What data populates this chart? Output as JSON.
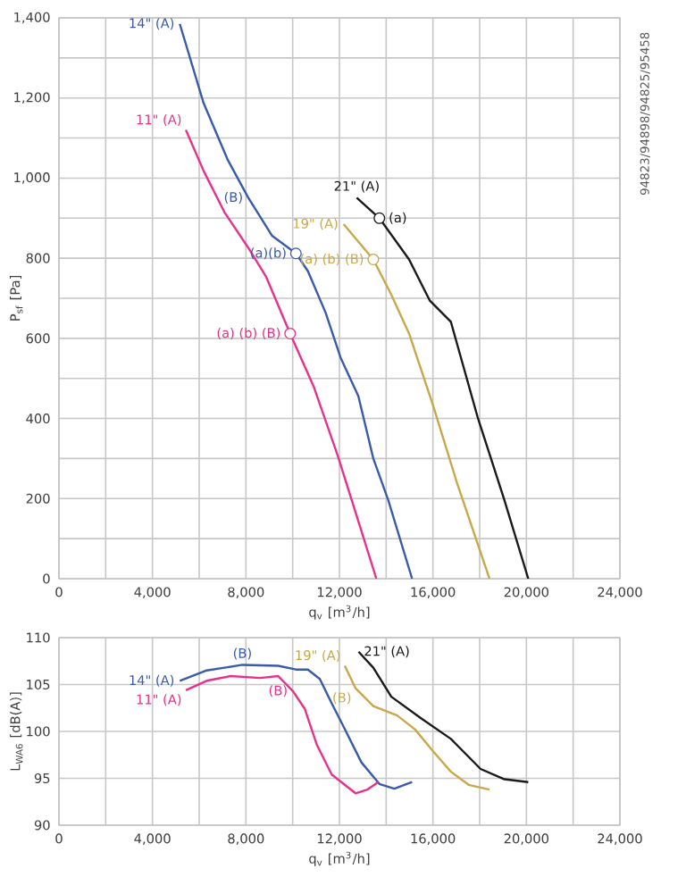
{
  "chart_data": [
    {
      "type": "line",
      "xlabel": "q$_{v}$ [m$^{3}$/h]",
      "ylabel": "P$_{sf}$ [Pa]",
      "grid": true,
      "marker": "none",
      "xlim": [
        0,
        24000
      ],
      "ylim": [
        0,
        1400
      ],
      "xticks": [
        {
          "value": 0,
          "label": "0"
        },
        {
          "value": 2000,
          "label": null
        },
        {
          "value": 4000,
          "label": "4,000"
        },
        {
          "value": 6000,
          "label": null
        },
        {
          "value": 8000,
          "label": "8,000"
        },
        {
          "value": 10000,
          "label": null
        },
        {
          "value": 12000,
          "label": "12,000"
        },
        {
          "value": 14000,
          "label": null
        },
        {
          "value": 16000,
          "label": "16,000"
        },
        {
          "value": 18000,
          "label": null
        },
        {
          "value": 20000,
          "label": "20,000"
        },
        {
          "value": 22000,
          "label": null
        },
        {
          "value": 24000,
          "label": "24,000"
        }
      ],
      "yticks": [
        {
          "value": 0,
          "label": "0"
        },
        {
          "value": 100,
          "label": null
        },
        {
          "value": 200,
          "label": "200"
        },
        {
          "value": 300,
          "label": null
        },
        {
          "value": 400,
          "label": "400"
        },
        {
          "value": 500,
          "label": null
        },
        {
          "value": 600,
          "label": "600"
        },
        {
          "value": 700,
          "label": null
        },
        {
          "value": 800,
          "label": "800"
        },
        {
          "value": 900,
          "label": null
        },
        {
          "value": 1000,
          "label": "1,000"
        },
        {
          "value": 1100,
          "label": null
        },
        {
          "value": 1200,
          "label": "1,200"
        },
        {
          "value": 1300,
          "label": null
        },
        {
          "value": 1400,
          "label": "1,400"
        }
      ],
      "series": [
        {
          "color": "#3a5ba8",
          "x": [
            5170,
            6190,
            7210,
            8100,
            9120,
            10140,
            10650,
            11410,
            12050,
            12810,
            13450,
            14090,
            15110
          ],
          "values": [
            1385,
            1187,
            1047,
            951,
            856,
            812,
            768,
            664,
            552,
            456,
            300,
            196,
            0
          ]
        },
        {
          "color": "#e8318a",
          "x": [
            5430,
            6190,
            7080,
            8100,
            8870,
            9890,
            10910,
            11930,
            12690,
            13580
          ],
          "values": [
            1120,
            1018,
            915,
            826,
            753,
            612,
            478,
            307,
            166,
            0
          ]
        },
        {
          "color": "#c8a84a",
          "x": [
            12180,
            13450,
            14220,
            14980,
            16000,
            17020,
            18420
          ],
          "values": [
            885,
            797,
            709,
            612,
            434,
            241,
            0
          ]
        },
        {
          "color": "#1a1a1a",
          "x": [
            12740,
            13710,
            14980,
            15870,
            16770,
            17910,
            19060,
            20080
          ],
          "values": [
            951,
            900,
            797,
            694,
            641,
            404,
            196,
            0
          ]
        }
      ],
      "annotations": [
        {
          "text": "14\" (A)",
          "x": 5170,
          "y": 1385
        },
        {
          "text": "11\" (A)",
          "x": 5430,
          "y": 1120
        },
        {
          "text": "(B)",
          "x": 8100,
          "y": 951
        },
        {
          "text": "(a)(b)",
          "x": 10140,
          "y": 812
        },
        {
          "text": "(a) (b) (B)",
          "x": 9890,
          "y": 612
        },
        {
          "text": "19\" (A)",
          "x": 12180,
          "y": 885
        },
        {
          "text": "(a) (b) (B)",
          "x": 13450,
          "y": 797
        },
        {
          "text": "21\" (A)",
          "x": 12740,
          "y": 951
        },
        {
          "text": "(a)",
          "x": 13710,
          "y": 900
        },
        "94823/94898/94825/95458"
      ]
    },
    {
      "type": "line",
      "xlabel": "q$_{v}$ [m$^{3}$/h]",
      "ylabel": "L$_{WA6}$ [dB(A)]",
      "grid": true,
      "marker": "none",
      "xlim": [
        0,
        24000
      ],
      "ylim": [
        90,
        110
      ],
      "xticks": [
        {
          "value": 0,
          "label": "0"
        },
        {
          "value": 2000,
          "label": null
        },
        {
          "value": 4000,
          "label": "4,000"
        },
        {
          "value": 6000,
          "label": null
        },
        {
          "value": 8000,
          "label": "8,000"
        },
        {
          "value": 10000,
          "label": null
        },
        {
          "value": 12000,
          "label": "12,000"
        },
        {
          "value": 14000,
          "label": null
        },
        {
          "value": 16000,
          "label": "16,000"
        },
        {
          "value": 18000,
          "label": null
        },
        {
          "value": 20000,
          "label": "20,000"
        },
        {
          "value": 22000,
          "label": null
        },
        {
          "value": 24000,
          "label": "24,000"
        }
      ],
      "yticks": [
        90,
        95,
        100,
        105,
        110
      ],
      "series": [
        {
          "color": "#3a5ba8",
          "x": [
            5170,
            6320,
            7850,
            9380,
            10140,
            10650,
            11160,
            11670,
            12180,
            12940,
            13710,
            14350,
            15110
          ],
          "values": [
            105.4,
            106.5,
            107.1,
            107.0,
            106.6,
            106.6,
            105.6,
            103.0,
            100.5,
            96.7,
            94.4,
            93.9,
            94.6
          ]
        },
        {
          "color": "#e8318a",
          "x": [
            5430,
            6320,
            7340,
            8610,
            9380,
            10010,
            10520,
            11030,
            11670,
            12690,
            13200,
            13660
          ],
          "values": [
            104.4,
            105.4,
            105.9,
            105.7,
            105.9,
            104.3,
            102.4,
            98.6,
            95.4,
            93.4,
            93.8,
            94.6
          ]
        },
        {
          "color": "#c8a84a",
          "x": [
            12230,
            12690,
            13450,
            14470,
            15240,
            16000,
            16770,
            17530,
            18420
          ],
          "values": [
            107.0,
            104.6,
            102.7,
            101.7,
            100.2,
            97.9,
            95.7,
            94.3,
            93.8
          ]
        },
        {
          "color": "#1a1a1a",
          "x": [
            12820,
            13450,
            14220,
            15490,
            16770,
            18040,
            19060,
            20080
          ],
          "values": [
            108.5,
            106.8,
            103.7,
            101.4,
            99.2,
            96.0,
            94.9,
            94.6
          ]
        }
      ],
      "annotations": [
        {
          "text": "14\" (A)",
          "x": 5170,
          "y": 105.4
        },
        {
          "text": "11\" (A)",
          "x": 5430,
          "y": 104.4
        },
        {
          "text": "(B)",
          "x": 7850,
          "y": 107.1
        },
        {
          "text": "(B)",
          "x": 10010,
          "y": 104.3
        },
        {
          "text": "19\" (A)",
          "x": 12230,
          "y": 107.0
        },
        {
          "text": "(B)",
          "x": 12690,
          "y": 104.6
        },
        {
          "text": "21\" (A)",
          "x": 12820,
          "y": 108.5
        }
      ]
    }
  ]
}
